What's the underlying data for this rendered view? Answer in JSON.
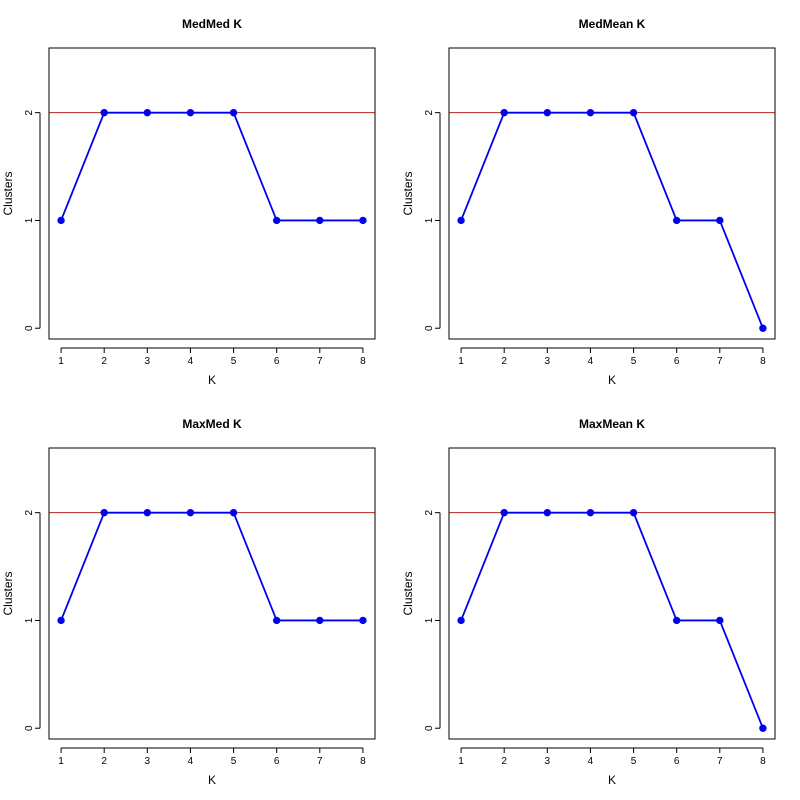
{
  "colors": {
    "series_line": "#0000ee",
    "series_point": "#0000ee",
    "reference_line": "#b22222",
    "axis": "#000000",
    "background": "#ffffff"
  },
  "chart_data": [
    {
      "type": "line",
      "title": "MedMed K",
      "xlabel": "K",
      "ylabel": "Clusters",
      "x": [
        1,
        2,
        3,
        4,
        5,
        6,
        7,
        8
      ],
      "series": [
        {
          "values": [
            1,
            2,
            2,
            2,
            2,
            1,
            1,
            1
          ]
        }
      ],
      "reference_lines": [
        {
          "axis": "y",
          "value": 2
        }
      ],
      "xlim": [
        0.72,
        8.28
      ],
      "ylim": [
        -0.1,
        2.6
      ],
      "xticks": [
        1,
        2,
        3,
        4,
        5,
        6,
        7,
        8
      ],
      "yticks": [
        0,
        1,
        2
      ],
      "grid": false,
      "legend": "none",
      "markers": "filled circles"
    },
    {
      "type": "line",
      "title": "MedMean K",
      "xlabel": "K",
      "ylabel": "Clusters",
      "x": [
        1,
        2,
        3,
        4,
        5,
        6,
        7,
        8
      ],
      "series": [
        {
          "values": [
            1,
            2,
            2,
            2,
            2,
            1,
            1,
            0
          ]
        }
      ],
      "reference_lines": [
        {
          "axis": "y",
          "value": 2
        }
      ],
      "xlim": [
        0.72,
        8.28
      ],
      "ylim": [
        -0.1,
        2.6
      ],
      "xticks": [
        1,
        2,
        3,
        4,
        5,
        6,
        7,
        8
      ],
      "yticks": [
        0,
        1,
        2
      ],
      "grid": false,
      "legend": "none",
      "markers": "filled circles"
    },
    {
      "type": "line",
      "title": "MaxMed K",
      "xlabel": "K",
      "ylabel": "Clusters",
      "x": [
        1,
        2,
        3,
        4,
        5,
        6,
        7,
        8
      ],
      "series": [
        {
          "values": [
            1,
            2,
            2,
            2,
            2,
            1,
            1,
            1
          ]
        }
      ],
      "reference_lines": [
        {
          "axis": "y",
          "value": 2
        }
      ],
      "xlim": [
        0.72,
        8.28
      ],
      "ylim": [
        -0.1,
        2.6
      ],
      "xticks": [
        1,
        2,
        3,
        4,
        5,
        6,
        7,
        8
      ],
      "yticks": [
        0,
        1,
        2
      ],
      "grid": false,
      "legend": "none",
      "markers": "filled circles"
    },
    {
      "type": "line",
      "title": "MaxMean K",
      "xlabel": "K",
      "ylabel": "Clusters",
      "x": [
        1,
        2,
        3,
        4,
        5,
        6,
        7,
        8
      ],
      "series": [
        {
          "values": [
            1,
            2,
            2,
            2,
            2,
            1,
            1,
            0
          ]
        }
      ],
      "reference_lines": [
        {
          "axis": "y",
          "value": 2
        }
      ],
      "xlim": [
        0.72,
        8.28
      ],
      "ylim": [
        -0.1,
        2.6
      ],
      "xticks": [
        1,
        2,
        3,
        4,
        5,
        6,
        7,
        8
      ],
      "yticks": [
        0,
        1,
        2
      ],
      "grid": false,
      "legend": "none",
      "markers": "filled circles"
    }
  ]
}
